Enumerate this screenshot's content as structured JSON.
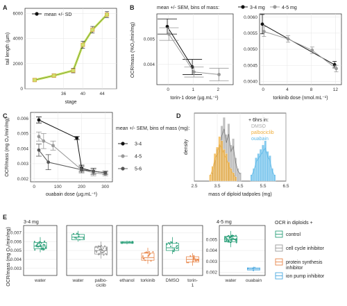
{
  "chart_data": [
    {
      "panel": "A",
      "type": "line",
      "xlabel": "stage",
      "ylabel": "tail length (µm)",
      "ylim": [
        0,
        6400
      ],
      "x_ticks": [
        "36",
        "40",
        "44"
      ],
      "y_ticks": [
        "0",
        "2000",
        "4000",
        "6000"
      ],
      "grid": true,
      "legend": [
        "mean +/- SD"
      ],
      "x": [
        30,
        34,
        38,
        40,
        42,
        45
      ],
      "y": [
        700,
        1050,
        1450,
        3500,
        4700,
        5900
      ],
      "err": [
        120,
        150,
        180,
        280,
        260,
        240
      ],
      "color": "#111111",
      "fill_color": "#cfe36a",
      "accent_color": "#d9a24a"
    },
    {
      "panel": "B",
      "type": "line",
      "legend_title": "mean +/- SEM, bins of mass:",
      "legend": [
        "3-4 mg",
        "4-5 mg"
      ],
      "ylabel": "OCR/mass (%O₂/min/mg)",
      "subplots": [
        {
          "xlabel": "torin-1 dose (µg.mL⁻¹)",
          "x_ticks": [
            "0",
            "1",
            "2"
          ],
          "y_ticks": [
            "0.004",
            "0.005"
          ],
          "ylim": [
            0.0032,
            0.006
          ],
          "series": [
            {
              "name": "3-4 mg",
              "color": "#111111",
              "x": [
                0,
                1
              ],
              "y": [
                0.0055,
                0.0039
              ],
              "err": [
                0.0003,
                0.0003
              ]
            },
            {
              "name": "4-5 mg",
              "color": "#999999",
              "x": [
                0,
                1,
                2
              ],
              "y": [
                0.0052,
                0.0037,
                0.0036
              ],
              "err": [
                0.00025,
                0.0002,
                0.00025
              ]
            }
          ]
        },
        {
          "xlabel": "torkinib dose (nmol.mL⁻¹)",
          "x_ticks": [
            "0",
            "4",
            "8",
            "12"
          ],
          "y_ticks": [
            "0.0040",
            "0.0045",
            "0.0050",
            "0.0055",
            "0.0060"
          ],
          "ylim": [
            0.0039,
            0.0061
          ],
          "series": [
            {
              "name": "3-4 mg",
              "color": "#111111",
              "x": [
                0,
                12
              ],
              "y": [
                0.00578,
                0.00452
              ],
              "err": [
                0.0003,
                0.0001
              ]
            },
            {
              "name": "4-5 mg",
              "color": "#999999",
              "x": [
                0,
                4,
                8,
                12
              ],
              "y": [
                0.00555,
                0.00532,
                0.00497,
                0.0044
              ],
              "err": [
                0.00015,
                0.0001,
                0.0001,
                0.0001
              ]
            }
          ]
        }
      ]
    },
    {
      "panel": "C",
      "type": "line",
      "xlabel": "ouabain dose (µg.mL⁻¹)",
      "ylabel": "OCR/mass (mg O₂/min/mg)",
      "x_ticks": [
        "0",
        "100",
        "200",
        "300"
      ],
      "y_ticks": [
        "0.002",
        "0.003",
        "0.004",
        "0.005",
        "0.006"
      ],
      "ylim": [
        0.0018,
        0.0064
      ],
      "legend_title": "mean +/- SEM, bins of mass (mg):",
      "series": [
        {
          "name": "3-4",
          "color": "#111111",
          "x": [
            20,
            180,
            200,
            250,
            300
          ],
          "y": [
            0.0059,
            0.0047,
            0.0027,
            0.0025,
            0.0024
          ],
          "err": [
            0.0002,
            0.0001,
            0.0002,
            0.0002,
            0.0001
          ]
        },
        {
          "name": "4-5",
          "color": "#999999",
          "x": [
            20,
            40,
            80,
            200,
            250,
            300
          ],
          "y": [
            0.0048,
            0.0045,
            0.0042,
            0.0026,
            0.0024,
            0.0023
          ],
          "err": [
            0.0003,
            0.0005,
            0.0003,
            0.0002,
            0.0002,
            0.0001
          ]
        },
        {
          "name": "5-6",
          "color": "#555555",
          "x": [
            20,
            60,
            200,
            250,
            300
          ],
          "y": [
            0.0039,
            0.0031,
            0.0026,
            0.0025,
            0.0024
          ],
          "err": [
            0.0004,
            0.0005,
            0.0002,
            0.0002,
            0.0001
          ]
        }
      ]
    },
    {
      "panel": "D",
      "type": "bar",
      "xlabel": "mass of diploid tadpoles (mg)",
      "ylabel": "density",
      "x_ticks": [
        "2.5",
        "3.5",
        "4.5",
        "5.5",
        "6.5"
      ],
      "xlim": [
        2.5,
        6.5
      ],
      "legend_title": "+ 6hrs in:",
      "series": [
        {
          "name": "DMSO",
          "color": "#aaaaaa",
          "bins": [
            3.3,
            3.4,
            3.5,
            3.6,
            3.7,
            3.8,
            3.9,
            4.0,
            4.1,
            4.2,
            4.3,
            4.4,
            4.5
          ],
          "values": [
            0.4,
            1.0,
            1.5,
            1.7,
            2.6,
            3.0,
            2.2,
            2.7,
            1.7,
            2.0,
            1.1,
            0.6,
            0.4
          ]
        },
        {
          "name": "palbociclib",
          "color": "#f0b040",
          "bins": [
            3.2,
            3.3,
            3.4,
            3.5,
            3.6,
            3.7,
            3.8,
            3.9,
            4.0,
            4.1,
            4.2,
            4.3
          ],
          "values": [
            0.3,
            0.7,
            1.3,
            1.6,
            2.1,
            1.9,
            1.5,
            1.3,
            0.9,
            0.6,
            0.4,
            0.2
          ]
        },
        {
          "name": "ouabain",
          "color": "#5bb8e8",
          "bins": [
            5.0,
            5.1,
            5.2,
            5.3,
            5.4,
            5.5,
            5.6,
            5.7,
            5.8,
            5.9,
            6.0
          ],
          "values": [
            0.3,
            0.6,
            1.1,
            1.3,
            1.5,
            1.7,
            1.9,
            1.4,
            1.2,
            0.6,
            0.3
          ]
        }
      ]
    },
    {
      "panel": "E",
      "type": "box",
      "ylabel": "OCR/mass (mg O₂/min/mg)",
      "legend_title": "OCR in diploids +",
      "legend": [
        {
          "name": "control",
          "color": "#2ca07a"
        },
        {
          "name": "cell cycle inhibitor",
          "color": "#999999"
        },
        {
          "name": "protein synthesis inhibitor",
          "color": "#e8864a"
        },
        {
          "name": "ion pump inhibitor",
          "color": "#4aa8e0"
        }
      ],
      "groups": [
        {
          "title": "3-4 mg",
          "y_ticks": [
            "0.003",
            "0.004",
            "0.005",
            "0.006",
            "0.007"
          ],
          "ylim": [
            0.0022,
            0.0078
          ],
          "subpanels": [
            {
              "boxes": [
                {
                  "label": "water",
                  "category": "control",
                  "min": 0.0048,
                  "q1": 0.0052,
                  "median": 0.0055,
                  "q3": 0.0059,
                  "max": 0.0065,
                  "n": 28
                }
              ]
            },
            {
              "boxes": [
                {
                  "label": "water",
                  "category": "control",
                  "min": 0.006,
                  "q1": 0.0062,
                  "median": 0.0065,
                  "q3": 0.0068,
                  "max": 0.0072,
                  "n": 8
                },
                {
                  "label": "palbo-ciclib",
                  "category": "cell cycle inhibitor",
                  "min": 0.0041,
                  "q1": 0.0046,
                  "median": 0.005,
                  "q3": 0.0054,
                  "max": 0.006,
                  "n": 40
                }
              ]
            },
            {
              "boxes": [
                {
                  "label": "ethanol",
                  "category": "control",
                  "min": 0.0057,
                  "q1": 0.0058,
                  "median": 0.0059,
                  "q3": 0.006,
                  "max": 0.0061,
                  "n": 6
                },
                {
                  "label": "torkinib",
                  "category": "protein synthesis inhibitor",
                  "min": 0.0035,
                  "q1": 0.0039,
                  "median": 0.0042,
                  "q3": 0.0047,
                  "max": 0.0053,
                  "n": 14
                }
              ]
            },
            {
              "boxes": [
                {
                  "label": "DMSO",
                  "category": "control",
                  "min": 0.0046,
                  "q1": 0.005,
                  "median": 0.0053,
                  "q3": 0.0058,
                  "max": 0.0065,
                  "n": 14
                },
                {
                  "label": "torin-1",
                  "category": "protein synthesis inhibitor",
                  "min": 0.0033,
                  "q1": 0.0037,
                  "median": 0.004,
                  "q3": 0.0043,
                  "max": 0.0047,
                  "n": 18
                }
              ]
            }
          ]
        },
        {
          "title": "4-5 mg",
          "y_ticks": [
            "0.002",
            "0.003",
            "0.004",
            "0.005"
          ],
          "ylim": [
            0.0017,
            0.0063
          ],
          "subpanels": [
            {
              "boxes": [
                {
                  "label": "water",
                  "category": "control",
                  "min": 0.0043,
                  "q1": 0.0048,
                  "median": 0.005,
                  "q3": 0.0053,
                  "max": 0.0058,
                  "n": 40
                },
                {
                  "label": "ouabain",
                  "category": "ion pump inhibitor",
                  "min": 0.0021,
                  "q1": 0.0022,
                  "median": 0.0023,
                  "q3": 0.0024,
                  "max": 0.0025,
                  "n": 4
                }
              ]
            }
          ]
        }
      ]
    }
  ]
}
